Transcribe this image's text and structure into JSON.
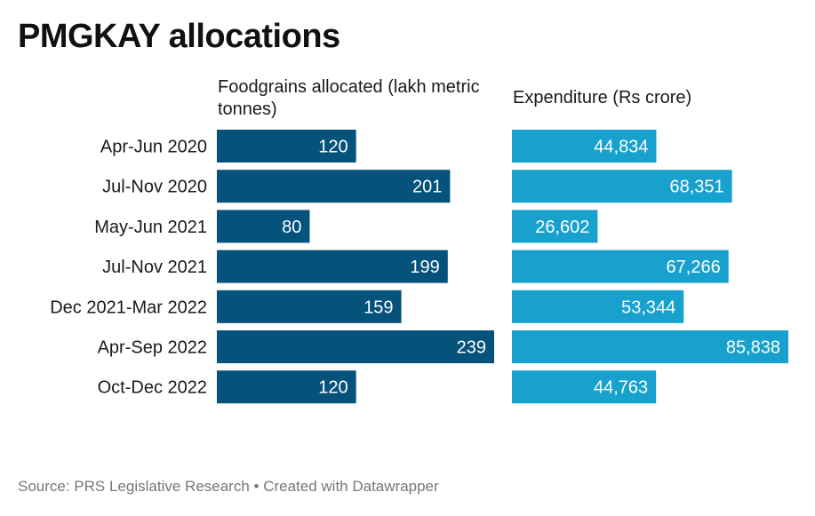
{
  "chart_data": {
    "type": "bar",
    "orientation": "horizontal",
    "title": "PMGKAY allocations",
    "categories": [
      "Apr-Jun 2020",
      "Jul-Nov 2020",
      "May-Jun 2021",
      "Jul-Nov 2021",
      "Dec 2021-Mar 2022",
      "Apr-Sep 2022",
      "Oct-Dec 2022"
    ],
    "series": [
      {
        "name": "Foodgrains allocated (lakh metric tonnes)",
        "values": [
          120,
          201,
          80,
          199,
          159,
          239,
          120
        ],
        "labels": [
          "120",
          "201",
          "80",
          "199",
          "159",
          "239",
          "120"
        ],
        "color": "#05527a"
      },
      {
        "name": "Expenditure (Rs crore)",
        "values": [
          44834,
          68351,
          26602,
          67266,
          53344,
          85838,
          44763
        ],
        "labels": [
          "44,834",
          "68,351",
          "26,602",
          "67,266",
          "53,344",
          "85,838",
          "44,763"
        ],
        "color": "#18a1cd"
      }
    ],
    "legend": "none",
    "grid": false,
    "source": "Source: PRS Legislative Research • Created with Datawrapper"
  }
}
